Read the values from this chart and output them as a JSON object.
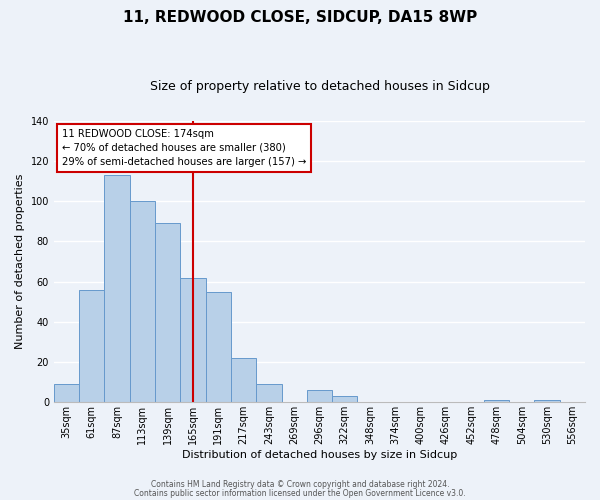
{
  "title": "11, REDWOOD CLOSE, SIDCUP, DA15 8WP",
  "subtitle": "Size of property relative to detached houses in Sidcup",
  "xlabel": "Distribution of detached houses by size in Sidcup",
  "ylabel": "Number of detached properties",
  "bin_labels": [
    "35sqm",
    "61sqm",
    "87sqm",
    "113sqm",
    "139sqm",
    "165sqm",
    "191sqm",
    "217sqm",
    "243sqm",
    "269sqm",
    "296sqm",
    "322sqm",
    "348sqm",
    "374sqm",
    "400sqm",
    "426sqm",
    "452sqm",
    "478sqm",
    "504sqm",
    "530sqm",
    "556sqm"
  ],
  "bar_values": [
    9,
    56,
    113,
    100,
    89,
    62,
    55,
    22,
    9,
    0,
    6,
    3,
    0,
    0,
    0,
    0,
    0,
    1,
    0,
    1,
    0
  ],
  "bar_color": "#b8d0e8",
  "bar_edge_color": "#6699cc",
  "ylim": [
    0,
    140
  ],
  "yticks": [
    0,
    20,
    40,
    60,
    80,
    100,
    120,
    140
  ],
  "property_line_x": 5.5,
  "property_line_color": "#cc0000",
  "annotation_text": "11 REDWOOD CLOSE: 174sqm\n← 70% of detached houses are smaller (380)\n29% of semi-detached houses are larger (157) →",
  "annotation_box_color": "#ffffff",
  "annotation_box_edge": "#cc0000",
  "footer_line1": "Contains HM Land Registry data © Crown copyright and database right 2024.",
  "footer_line2": "Contains public sector information licensed under the Open Government Licence v3.0.",
  "background_color": "#edf2f9",
  "plot_bg_color": "#edf2f9",
  "grid_color": "#ffffff",
  "title_fontsize": 11,
  "subtitle_fontsize": 9,
  "ylabel_fontsize": 8,
  "xlabel_fontsize": 8,
  "tick_fontsize": 7,
  "footer_fontsize": 5.5
}
